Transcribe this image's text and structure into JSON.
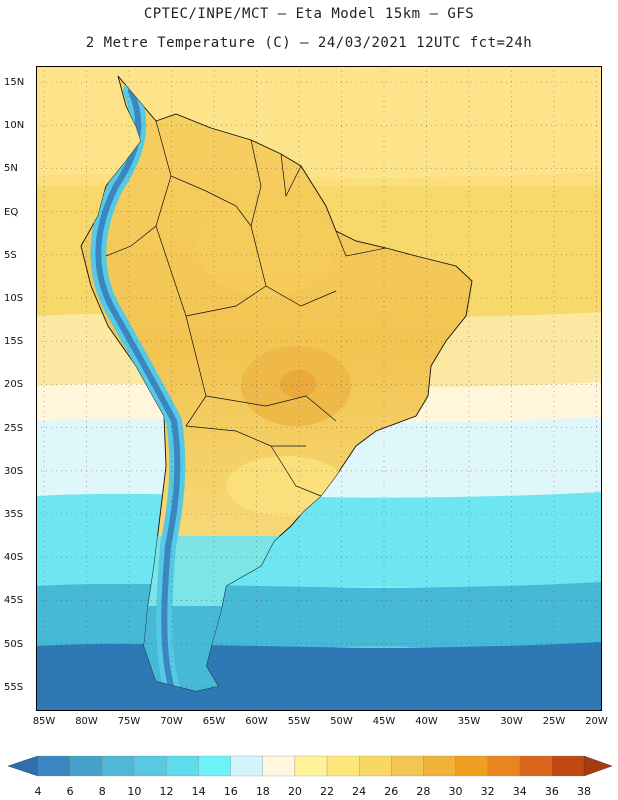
{
  "header": {
    "line1": "CPTEC/INPE/MCT –  Eta Model 15km – GFS",
    "line2": "2 Metre Temperature (C) – 24/03/2021 12UTC fct=24h"
  },
  "axes": {
    "lat_labels": [
      "15N",
      "10N",
      "5N",
      "EQ",
      "5S",
      "10S",
      "15S",
      "20S",
      "25S",
      "30S",
      "35S",
      "40S",
      "45S",
      "50S",
      "55S"
    ],
    "lon_labels": [
      "85W",
      "80W",
      "75W",
      "70W",
      "65W",
      "60W",
      "55W",
      "50W",
      "45W",
      "40W",
      "35W",
      "30W",
      "25W",
      "20W"
    ]
  },
  "colorbar": {
    "levels": [
      "4",
      "6",
      "8",
      "10",
      "12",
      "14",
      "16",
      "18",
      "20",
      "22",
      "24",
      "26",
      "28",
      "30",
      "32",
      "34",
      "36",
      "38"
    ],
    "colors": [
      "#2f6fb0",
      "#3a86c0",
      "#45a1cc",
      "#4fb7d8",
      "#57c9e2",
      "#5fdcec",
      "#6cf2f8",
      "#d4f4fb",
      "#fff7e0",
      "#fff39a",
      "#fde67a",
      "#f8d765",
      "#f3c654",
      "#f0b23b",
      "#f0a020",
      "#e8851e",
      "#d9651a",
      "#c04812",
      "#a83a0f"
    ]
  },
  "map": {
    "ocean_zones": [
      "#fde48a",
      "#f7d86a",
      "#fbe9a3",
      "#fff6dc",
      "#dff6fb",
      "#6ee6f2",
      "#45b9d6",
      "#2e78b6"
    ],
    "land_colors": [
      "#f5cc5a",
      "#efb94a",
      "#fbe27f",
      "#e9a93c"
    ]
  }
}
